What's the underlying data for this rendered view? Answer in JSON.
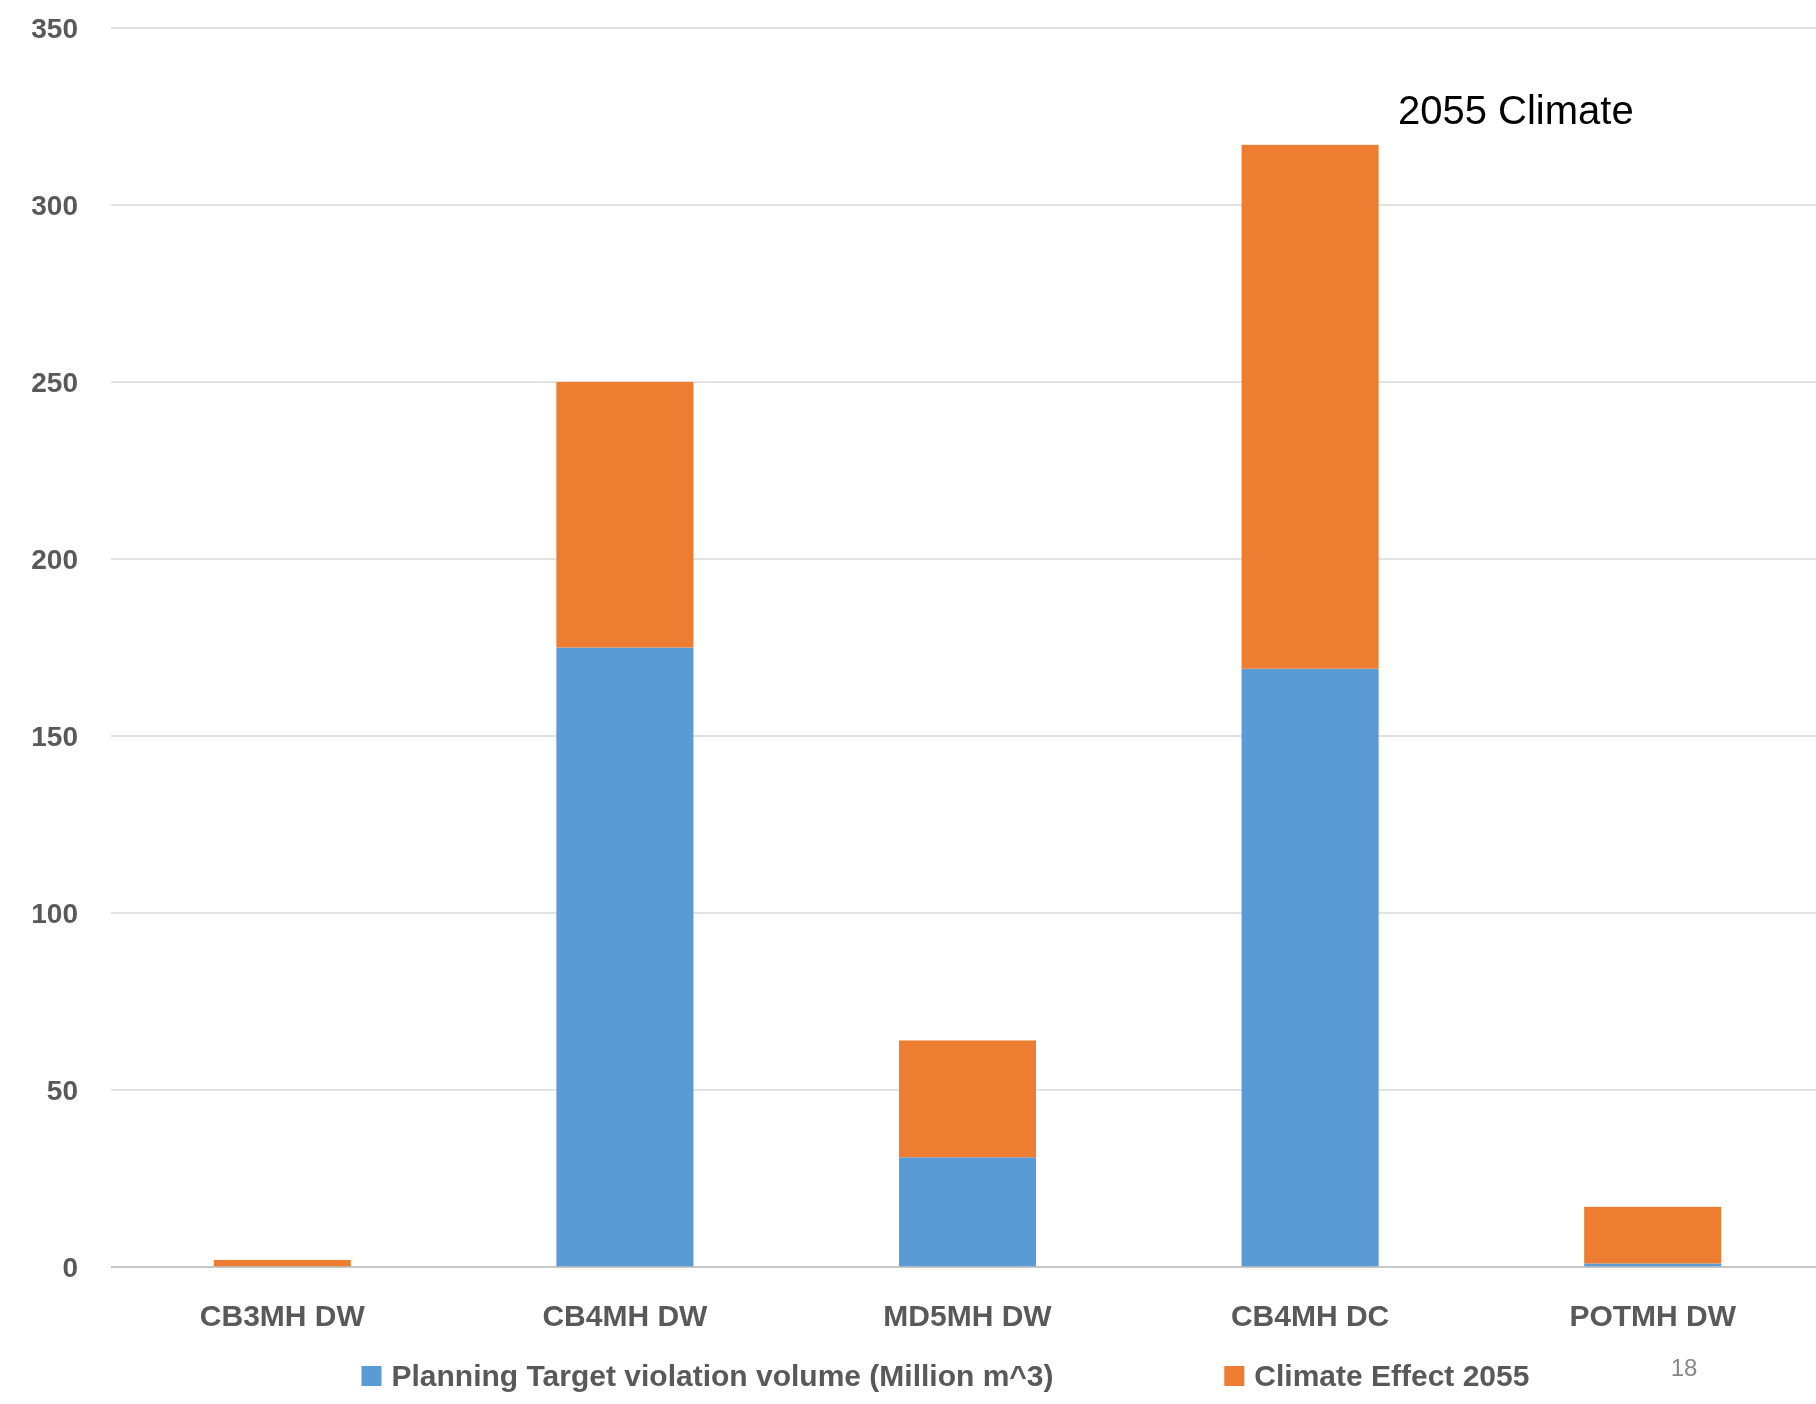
{
  "chart_data": {
    "type": "bar",
    "stacked": true,
    "categories": [
      "CB3MH DW",
      "CB4MH DW",
      "MD5MH DW",
      "CB4MH DC",
      "POTMH DW"
    ],
    "series": [
      {
        "name": "Planning Target violation volume (Million m^3)",
        "color": "#5b9bd5",
        "values": [
          0,
          175,
          31,
          169,
          1
        ]
      },
      {
        "name": "Climate Effect 2055",
        "color": "#ed7d31",
        "values": [
          2,
          75,
          33,
          148,
          16
        ]
      }
    ],
    "ylim": [
      0,
      350
    ],
    "yticks": [
      0,
      50,
      100,
      150,
      200,
      250,
      300,
      350
    ],
    "grid": "y",
    "legend": "bottom",
    "annotations": [
      "2055 Climate",
      "18"
    ]
  }
}
